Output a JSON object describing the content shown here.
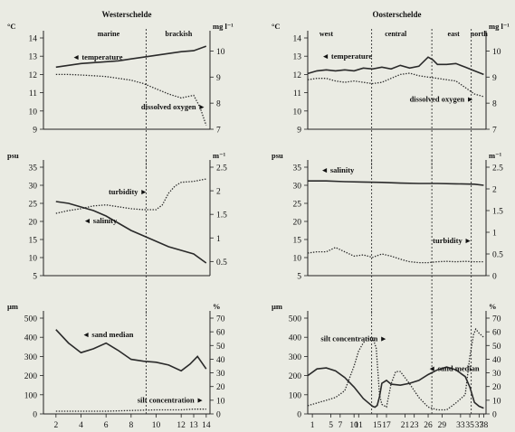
{
  "chart_data": [
    {
      "id": "ws-top",
      "type": "line",
      "title": "Westerschelde",
      "y_unit": "°C",
      "y2_unit": "mg l⁻¹",
      "ylim": [
        9,
        14
      ],
      "yticks": [
        9,
        10,
        11,
        12,
        13,
        14
      ],
      "y2lim": [
        7,
        10.5
      ],
      "y2ticks": [
        7,
        8,
        9,
        10
      ],
      "xlim": [
        1,
        14.3
      ],
      "regions": [
        {
          "label": "marine",
          "x": 6.2
        },
        {
          "label": "brackish",
          "x": 11.8
        }
      ],
      "dividers": [
        9.2
      ],
      "series": [
        {
          "name": "temperature",
          "axis": "left",
          "style": "solid",
          "x": [
            2,
            3,
            4,
            5,
            6,
            7,
            8,
            9,
            10,
            11,
            12,
            13,
            14
          ],
          "y": [
            12.4,
            12.5,
            12.6,
            12.65,
            12.7,
            12.75,
            12.85,
            12.95,
            13.05,
            13.15,
            13.25,
            13.3,
            13.55
          ]
        },
        {
          "name": "dissolved-oxygen",
          "axis": "right",
          "style": "dotted",
          "x": [
            2,
            3,
            4,
            5,
            6,
            7,
            8,
            9,
            10,
            11,
            12,
            12.5,
            13,
            13.5,
            14
          ],
          "y": [
            9.1,
            9.1,
            9.08,
            9.05,
            9.02,
            8.95,
            8.88,
            8.75,
            8.55,
            8.35,
            8.2,
            8.25,
            8.3,
            7.85,
            7.15
          ]
        }
      ],
      "annotations": [
        {
          "text": "◄ temperature",
          "x": 3.3,
          "y": 12.8
        },
        {
          "text": "dissolved oxygen ►",
          "x": 8.8,
          "y": 10.1
        }
      ]
    },
    {
      "id": "ws-mid",
      "type": "line",
      "y_unit": "psu",
      "y2_unit": "m⁻¹",
      "ylim": [
        5,
        35
      ],
      "yticks": [
        5,
        10,
        15,
        20,
        25,
        30,
        35
      ],
      "y2lim": [
        0.2,
        2.5
      ],
      "y2ticks": [
        0.5,
        1,
        1.5,
        2,
        2.5
      ],
      "xlim": [
        1,
        14.3
      ],
      "dividers": [
        9.2
      ],
      "series": [
        {
          "name": "salinity",
          "axis": "left",
          "style": "solid",
          "x": [
            2,
            3,
            4,
            5,
            6,
            7,
            8,
            9,
            10,
            11,
            12,
            13,
            14
          ],
          "y": [
            25.5,
            25,
            24,
            23,
            21.5,
            19.5,
            17.5,
            16,
            14.5,
            13,
            12,
            11,
            8.5
          ]
        },
        {
          "name": "turbidity",
          "axis": "right",
          "style": "dotted",
          "x": [
            2,
            3,
            4,
            5,
            6,
            7,
            8,
            9,
            10,
            10.5,
            11,
            11.5,
            12,
            13,
            14
          ],
          "y": [
            1.52,
            1.58,
            1.62,
            1.68,
            1.7,
            1.66,
            1.62,
            1.6,
            1.6,
            1.7,
            1.95,
            2.1,
            2.18,
            2.2,
            2.25
          ]
        }
      ],
      "annotations": [
        {
          "text": "turbidity ►",
          "x": 6.2,
          "y": 27.5
        },
        {
          "text": "◄ salinity",
          "x": 4.2,
          "y": 19.5
        }
      ]
    },
    {
      "id": "ws-bot",
      "type": "line",
      "y_unit": "µm",
      "y2_unit": "%",
      "ylim": [
        0,
        500
      ],
      "yticks": [
        0,
        100,
        200,
        300,
        400,
        500
      ],
      "y2lim": [
        0,
        70
      ],
      "y2ticks": [
        0,
        10,
        20,
        30,
        40,
        50,
        60,
        70
      ],
      "xlim": [
        1,
        14.3
      ],
      "xticks": [
        2,
        4,
        6,
        8,
        10,
        12,
        13,
        14
      ],
      "dividers": [
        9.2
      ],
      "series": [
        {
          "name": "sand median",
          "axis": "left",
          "style": "solid",
          "x": [
            2,
            3,
            4,
            5,
            6,
            7,
            8,
            9,
            10,
            11,
            12,
            12.7,
            13.3,
            14
          ],
          "y": [
            440,
            370,
            320,
            340,
            370,
            330,
            285,
            275,
            270,
            255,
            225,
            260,
            300,
            235
          ]
        },
        {
          "name": "silt concentration",
          "axis": "right",
          "style": "dotted",
          "x": [
            2,
            4,
            6,
            8,
            10,
            12,
            13,
            14
          ],
          "y": [
            2,
            2,
            2,
            2.5,
            3,
            3,
            3.5,
            3.5
          ]
        }
      ],
      "annotations": [
        {
          "text": "◄ sand median",
          "x": 4.1,
          "y": 400
        },
        {
          "text": "silt concentration ►",
          "x": 8.5,
          "y": 60
        }
      ]
    },
    {
      "id": "os-top",
      "type": "line",
      "title": "Oosterschelde",
      "y_unit": "°C",
      "y2_unit": "mg l⁻¹",
      "ylim": [
        9,
        14
      ],
      "yticks": [
        9,
        10,
        11,
        12,
        13,
        14
      ],
      "y2lim": [
        7,
        10.5
      ],
      "y2ticks": [
        7,
        8,
        9,
        10
      ],
      "xlim": [
        0,
        38.5
      ],
      "regions": [
        {
          "label": "west",
          "x": 4
        },
        {
          "label": "central",
          "x": 19
        },
        {
          "label": "east",
          "x": 31.5
        },
        {
          "label": "north",
          "x": 37
        }
      ],
      "dividers": [
        13.8,
        26.8,
        35.3
      ],
      "series": [
        {
          "name": "temperature",
          "axis": "left",
          "style": "solid",
          "x": [
            0,
            2,
            4,
            6,
            8,
            10,
            12,
            14,
            16,
            18,
            20,
            22,
            24,
            26,
            27,
            28,
            30,
            32,
            34,
            36,
            38
          ],
          "y": [
            12.05,
            12.2,
            12.25,
            12.2,
            12.25,
            12.2,
            12.35,
            12.3,
            12.4,
            12.3,
            12.5,
            12.35,
            12.45,
            12.95,
            12.8,
            12.55,
            12.55,
            12.6,
            12.4,
            12.2,
            12.0
          ]
        },
        {
          "name": "dissolved-oxygen",
          "axis": "right",
          "style": "dotted",
          "x": [
            0,
            2,
            4,
            6,
            8,
            10,
            12,
            14,
            16,
            18,
            20,
            22,
            24,
            26,
            28,
            30,
            32,
            34,
            36,
            38
          ],
          "y": [
            8.9,
            8.95,
            8.95,
            8.85,
            8.8,
            8.85,
            8.8,
            8.75,
            8.8,
            8.95,
            9.1,
            9.15,
            9.05,
            9.0,
            8.95,
            8.9,
            8.85,
            8.6,
            8.35,
            8.25
          ]
        }
      ],
      "annotations": [
        {
          "text": "◄ temperature",
          "x": 3.0,
          "y": 12.85
        },
        {
          "text": "dissolved oxygen ►",
          "x": 22,
          "y": 10.5
        }
      ]
    },
    {
      "id": "os-mid",
      "type": "line",
      "y_unit": "psu",
      "y2_unit": "m⁻¹",
      "ylim": [
        5,
        35
      ],
      "yticks": [
        5,
        10,
        15,
        20,
        25,
        30,
        35
      ],
      "y2lim": [
        0,
        2.5
      ],
      "y2ticks": [
        0,
        0.5,
        1,
        1.5,
        2,
        2.5
      ],
      "xlim": [
        0,
        38.5
      ],
      "dividers": [
        13.8,
        26.8,
        35.3
      ],
      "series": [
        {
          "name": "salinity",
          "axis": "left",
          "style": "solid",
          "x": [
            0,
            4,
            8,
            12,
            16,
            20,
            24,
            28,
            32,
            36,
            38
          ],
          "y": [
            31.2,
            31.2,
            31.0,
            30.9,
            30.8,
            30.6,
            30.5,
            30.5,
            30.4,
            30.3,
            30.0
          ]
        },
        {
          "name": "turbidity",
          "axis": "right",
          "style": "dotted",
          "x": [
            0,
            2,
            4,
            6,
            8,
            10,
            12,
            14,
            16,
            18,
            20,
            22,
            24,
            26,
            28,
            30,
            32,
            34,
            36,
            38
          ],
          "y": [
            0.52,
            0.55,
            0.55,
            0.65,
            0.55,
            0.45,
            0.48,
            0.42,
            0.5,
            0.45,
            0.38,
            0.32,
            0.3,
            0.3,
            0.32,
            0.33,
            0.32,
            0.33,
            0.32,
            0.32
          ]
        }
      ],
      "annotations": [
        {
          "text": "◄ salinity",
          "x": 2.8,
          "y": 33.5
        },
        {
          "text": "turbidity ►",
          "x": 27,
          "y": 14
        }
      ]
    },
    {
      "id": "os-bot",
      "type": "line",
      "y_unit": "µm",
      "y2_unit": "%",
      "ylim": [
        0,
        500
      ],
      "yticks": [
        0,
        100,
        200,
        300,
        400,
        500
      ],
      "y2lim": [
        0,
        70
      ],
      "y2ticks": [
        0,
        10,
        20,
        30,
        40,
        50,
        60,
        70
      ],
      "xlim": [
        0,
        38.5
      ],
      "xticks": [
        1,
        5,
        7,
        10,
        11,
        15,
        17,
        21,
        23,
        26,
        29,
        33,
        35,
        37,
        38
      ],
      "x_tick_labels": [
        "1",
        "5",
        "7",
        "10",
        "11",
        "15",
        "17",
        "21",
        "23",
        "26",
        "29",
        "33",
        "35",
        "37",
        "38"
      ],
      "dividers": [
        13.8,
        26.8,
        35.3
      ],
      "series": [
        {
          "name": "sand median",
          "axis": "left",
          "style": "solid",
          "x": [
            0,
            2,
            4,
            6,
            8,
            10,
            12,
            13,
            14,
            14.5,
            15,
            15.5,
            16,
            17,
            18,
            20,
            22,
            24,
            26,
            28,
            30,
            32,
            34,
            35,
            36,
            37,
            38
          ],
          "y": [
            200,
            235,
            240,
            225,
            190,
            140,
            80,
            60,
            40,
            35,
            45,
            90,
            160,
            175,
            155,
            150,
            160,
            175,
            205,
            230,
            245,
            230,
            195,
            140,
            60,
            40,
            30
          ]
        },
        {
          "name": "silt concentration",
          "axis": "right",
          "style": "dotted",
          "x": [
            0,
            2,
            4,
            6,
            8,
            10,
            11,
            12,
            13,
            14,
            14.8,
            15.5,
            16,
            17,
            18,
            19,
            20,
            22,
            24,
            26,
            28,
            30,
            32,
            34,
            35,
            35.8,
            36.3,
            37,
            38
          ],
          "y": [
            6,
            8,
            10,
            12,
            17,
            35,
            46,
            52,
            55,
            56,
            48,
            14,
            7,
            5,
            22,
            31,
            31,
            22,
            12,
            5,
            3,
            3,
            8,
            14,
            42,
            58,
            62,
            59,
            56
          ]
        }
      ],
      "annotations": [
        {
          "text": "silt concentration ►",
          "x": 2.8,
          "y": 380
        },
        {
          "text": "◄ sand median",
          "x": 26,
          "y": 225
        }
      ]
    }
  ]
}
